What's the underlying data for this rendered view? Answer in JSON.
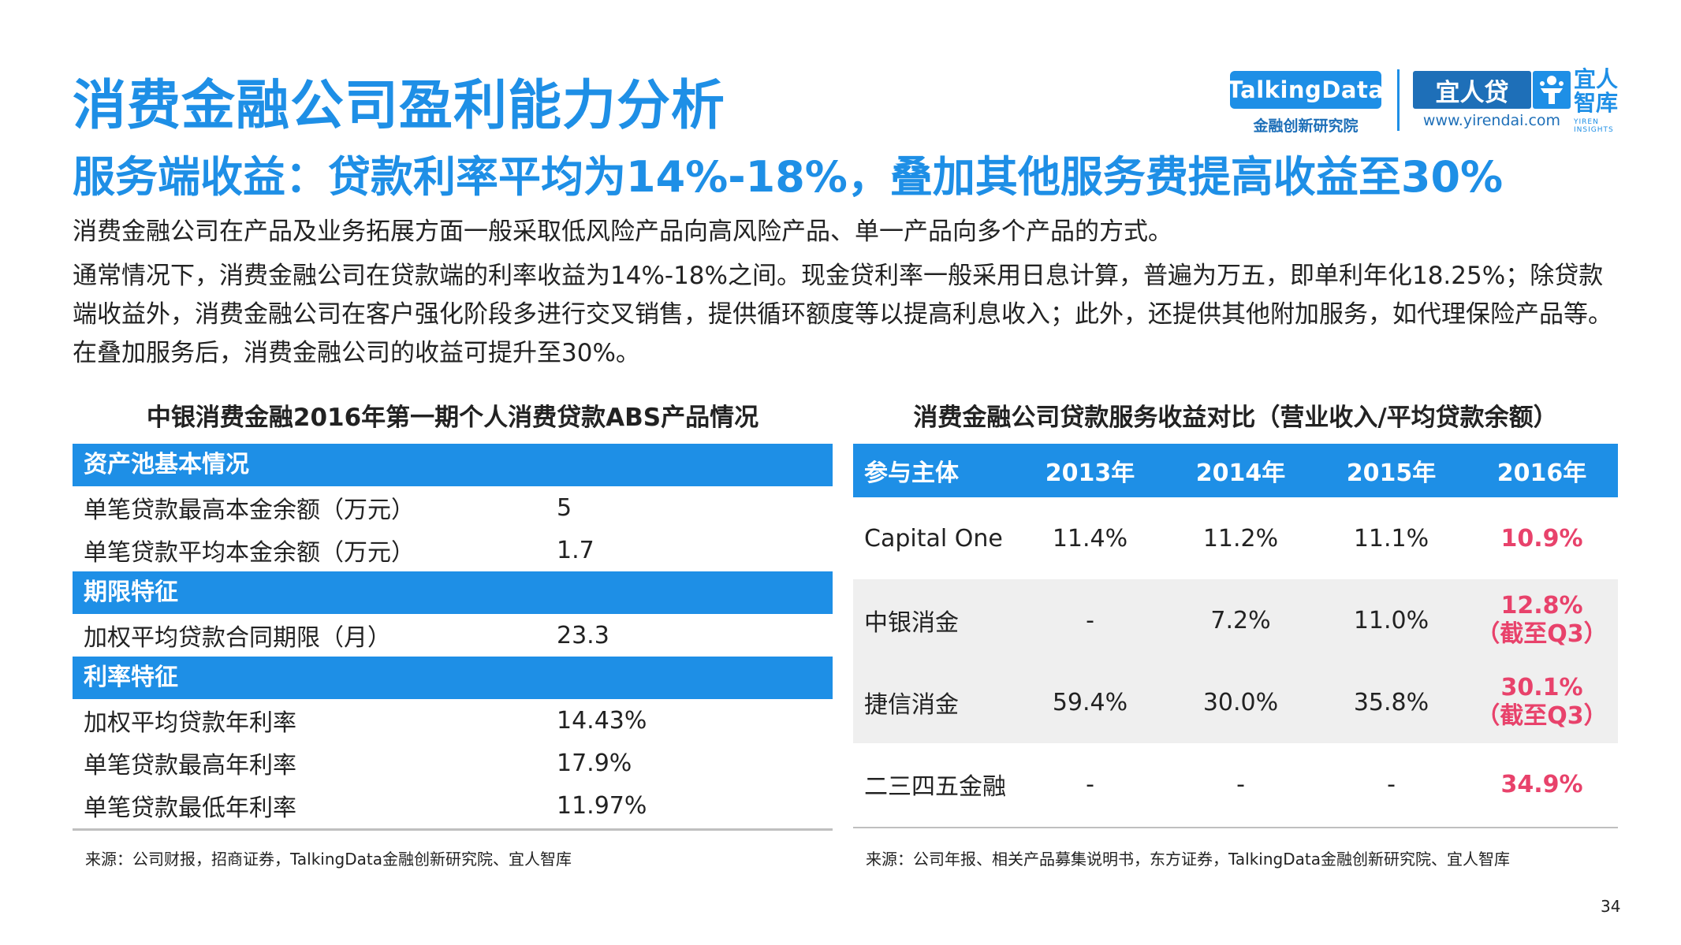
{
  "header": {
    "title": "消费金融公司盈利能力分析",
    "subtitle": "服务端收益：贷款利率平均为14%-18%，叠加其他服务费提高收益至30%"
  },
  "logos": {
    "talkingdata": "TalkingData",
    "talkingdata_sub": "金融创新研究院",
    "yirendai": "宜人贷",
    "yirendai_url": "www.yirendai.com",
    "yiren_zhiku_1": "宜人",
    "yiren_zhiku_2": "智库",
    "yiren_insights_1": "YIREN",
    "yiren_insights_2": "INSIGHTS"
  },
  "body": {
    "para1": "消费金融公司在产品及业务拓展方面一般采取低风险产品向高风险产品、单一产品向多个产品的方式。",
    "para2": "通常情况下，消费金融公司在贷款端的利率收益为14%-18%之间。现金贷利率一般采用日息计算，普遍为万五，即单利年化18.25%；除贷款端收益外，消费金融公司在客户强化阶段多进行交叉销售，提供循环额度等以提高利息收入；此外，还提供其他附加服务，如代理保险产品等。在叠加服务后，消费金融公司的收益可提升至30%。"
  },
  "left_table": {
    "title": "中银消费金融2016年第一期个人消费贷款ABS产品情况",
    "sections": [
      {
        "header": "资产池基本情况",
        "rows": [
          {
            "label": "单笔贷款最高本金余额（万元）",
            "value": "5"
          },
          {
            "label": "单笔贷款平均本金余额（万元）",
            "value": "1.7"
          }
        ]
      },
      {
        "header": "期限特征",
        "rows": [
          {
            "label": "加权平均贷款合同期限（月）",
            "value": "23.3"
          }
        ]
      },
      {
        "header": "利率特征",
        "rows": [
          {
            "label": "加权平均贷款年利率",
            "value": "14.43%"
          },
          {
            "label": "单笔贷款最高年利率",
            "value": "17.9%"
          },
          {
            "label": "单笔贷款最低年利率",
            "value": "11.97%"
          }
        ]
      }
    ],
    "source": "来源：公司财报，招商证券，TalkingData金融创新研究院、宜人智库"
  },
  "right_table": {
    "title": "消费金融公司贷款服务收益对比（营业收入/平均贷款余额）",
    "headers": [
      "参与主体",
      "2013年",
      "2014年",
      "2015年",
      "2016年"
    ],
    "rows": [
      {
        "entity": "Capital One",
        "y2013": "11.4%",
        "y2014": "11.2%",
        "y2015": "11.1%",
        "y2016": "10.9%",
        "y2016_note": ""
      },
      {
        "entity": "中银消金",
        "y2013": "-",
        "y2014": "7.2%",
        "y2015": "11.0%",
        "y2016": "12.8%",
        "y2016_note": "（截至Q3）"
      },
      {
        "entity": "捷信消金",
        "y2013": "59.4%",
        "y2014": "30.0%",
        "y2015": "35.8%",
        "y2016": "30.1%",
        "y2016_note": "（截至Q3）"
      },
      {
        "entity": "二三四五金融",
        "y2013": "-",
        "y2014": "-",
        "y2015": "-",
        "y2016": "34.9%",
        "y2016_note": ""
      }
    ],
    "source": "来源：公司年报、相关产品募集说明书，东方证券，TalkingData金融创新研究院、宜人智库"
  },
  "page_number": "34",
  "colors": {
    "accent": "#1e8fe6",
    "highlight": "#e8426b",
    "row_gray": "#efefef"
  }
}
